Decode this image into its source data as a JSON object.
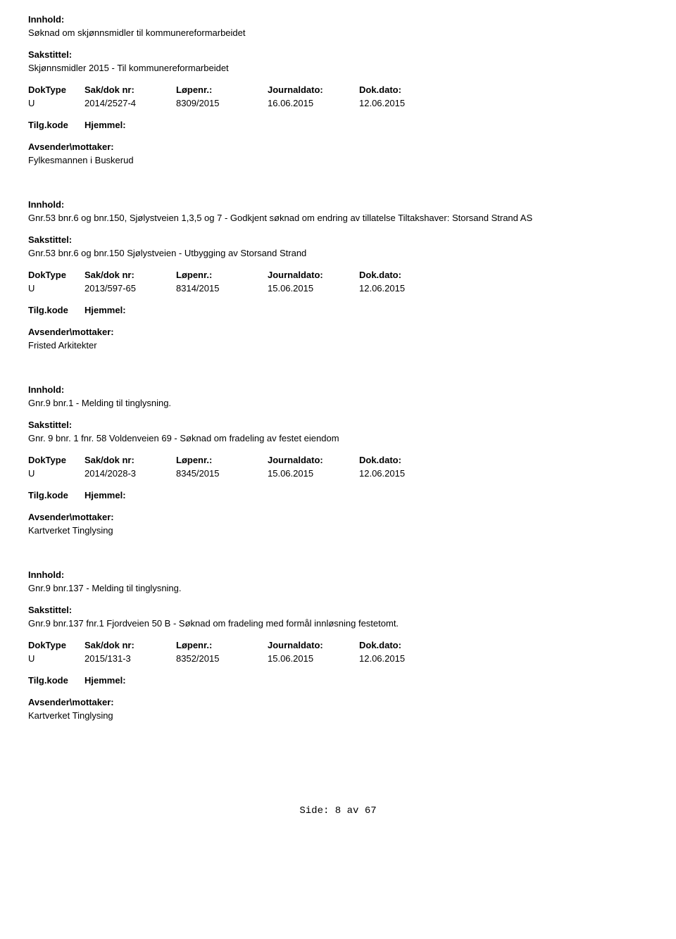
{
  "labels": {
    "innhold": "Innhold:",
    "sakstittel": "Sakstittel:",
    "doktype": "DokType",
    "saknr": "Sak/dok nr:",
    "lopenr": "Løpenr.:",
    "journaldato": "Journaldato:",
    "dokdato": "Dok.dato:",
    "tilgkode": "Tilg.kode",
    "hjemmel": "Hjemmel:",
    "avsender": "Avsender\\mottaker:"
  },
  "entries": [
    {
      "innhold": "Søknad om skjønnsmidler til kommunereformarbeidet",
      "sakstittel": "Skjønnsmidler 2015 - Til kommunereformarbeidet",
      "doktype": "U",
      "saknr": "2014/2527-4",
      "lopenr": "8309/2015",
      "journaldato": "16.06.2015",
      "dokdato": "12.06.2015",
      "avsender": "Fylkesmannen i Buskerud"
    },
    {
      "innhold": "Gnr.53 bnr.6 og bnr.150, Sjølystveien 1,3,5 og 7 - Godkjent søknad om endring av tillatelse Tiltakshaver: Storsand Strand AS",
      "sakstittel": "Gnr.53 bnr.6 og bnr.150 Sjølystveien - Utbygging av Storsand Strand",
      "doktype": "U",
      "saknr": "2013/597-65",
      "lopenr": "8314/2015",
      "journaldato": "15.06.2015",
      "dokdato": "12.06.2015",
      "avsender": "Fristed Arkitekter"
    },
    {
      "innhold": "Gnr.9 bnr.1 - Melding til tinglysning.",
      "sakstittel": "Gnr. 9 bnr. 1 fnr. 58 Voldenveien 69 - Søknad om fradeling av festet eiendom",
      "doktype": "U",
      "saknr": "2014/2028-3",
      "lopenr": "8345/2015",
      "journaldato": "15.06.2015",
      "dokdato": "12.06.2015",
      "avsender": "Kartverket Tinglysing"
    },
    {
      "innhold": "Gnr.9 bnr.137 - Melding til tinglysning.",
      "sakstittel": "Gnr.9 bnr.137 fnr.1 Fjordveien 50 B - Søknad om fradeling med formål innløsning festetomt.",
      "doktype": "U",
      "saknr": "2015/131-3",
      "lopenr": "8352/2015",
      "journaldato": "15.06.2015",
      "dokdato": "12.06.2015",
      "avsender": "Kartverket Tinglysing"
    }
  ],
  "footer": {
    "prefix": "Side:",
    "page": "8",
    "sep": "av",
    "total": "67"
  }
}
